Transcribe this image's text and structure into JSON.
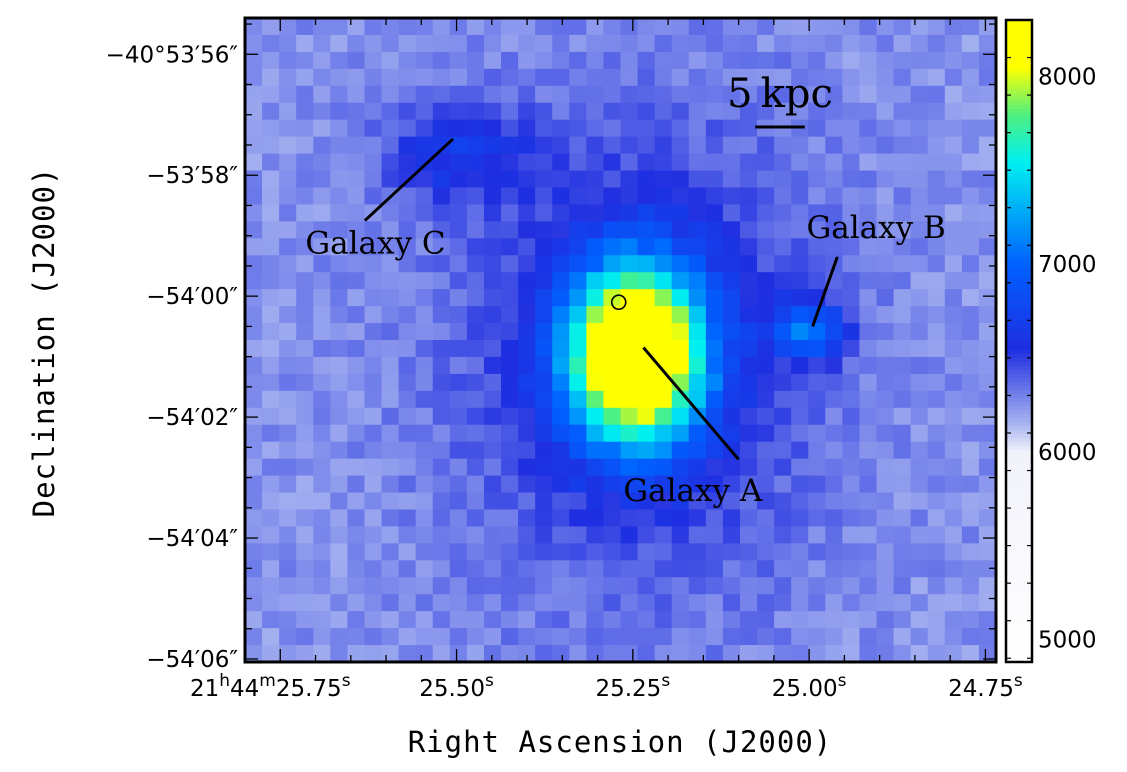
{
  "chart_data": {
    "type": "heatmap",
    "xlabel": "Right Ascension (J2000)",
    "ylabel": "Declination (J2000)",
    "x_tick_labels": [
      {
        "h": "21",
        "m": "44",
        "s": "25.75",
        "ra_sec": 25.75
      },
      {
        "s": "25.50",
        "ra_sec": 25.5
      },
      {
        "s": "25.25",
        "ra_sec": 25.25
      },
      {
        "s": "25.00",
        "ra_sec": 25.0
      },
      {
        "s": "24.75",
        "ra_sec": 24.75
      }
    ],
    "y_tick_labels": [
      {
        "label": "−40°53′56″",
        "dec_arcsec_offset": 4
      },
      {
        "label": "−53′58″",
        "dec_arcsec_offset": 2
      },
      {
        "label": "−54′00″",
        "dec_arcsec_offset": 0
      },
      {
        "label": "−54′02″",
        "dec_arcsec_offset": -2
      },
      {
        "label": "−54′04″",
        "dec_arcsec_offset": -4
      },
      {
        "label": "−54′06″",
        "dec_arcsec_offset": -6
      }
    ],
    "xlim": [
      25.8,
      24.735
    ],
    "ylim": [
      -6.05,
      4.6
    ],
    "colorbar": {
      "ticks": [
        5000,
        6000,
        7000,
        8000
      ],
      "range": [
        4880,
        8300
      ],
      "stops": [
        {
          "v": 4880,
          "color": "#ffffff"
        },
        {
          "v": 6000,
          "color": "#f2f2fb"
        },
        {
          "v": 6150,
          "color": "#a9b5f0"
        },
        {
          "v": 6550,
          "color": "#1f2ee0"
        },
        {
          "v": 7000,
          "color": "#0060ff"
        },
        {
          "v": 7550,
          "color": "#00f0f0"
        },
        {
          "v": 7800,
          "color": "#50f080"
        },
        {
          "v": 8050,
          "color": "#ffff00"
        },
        {
          "v": 8300,
          "color": "#ffff00"
        }
      ]
    },
    "image": {
      "grid_cols": 44,
      "grid_rows": 38,
      "background_level": 6250,
      "sources": [
        {
          "name": "Galaxy A",
          "ra_sec": 25.245,
          "dec_arcsec_offset": -0.95,
          "peak": 8650
        },
        {
          "name": "Galaxy B",
          "ra_sec": 25.0,
          "dec_arcsec_offset": -0.55,
          "peak": 6950
        },
        {
          "name": "Galaxy C",
          "ra_sec": 25.5,
          "dec_arcsec_offset": 2.35,
          "peak": 6600
        }
      ]
    },
    "annotations": [
      {
        "text": "Galaxy A",
        "text_ra_sec": 25.165,
        "text_dec_arcsec_offset": -3.25,
        "line_from": [
          25.235,
          -0.85
        ],
        "line_to": [
          25.1,
          -2.7
        ]
      },
      {
        "text": "Galaxy B",
        "text_ra_sec": 24.905,
        "text_dec_arcsec_offset": 1.1,
        "line_from": [
          24.96,
          0.65
        ],
        "line_to": [
          24.995,
          -0.5
        ]
      },
      {
        "text": "Galaxy C",
        "text_ra_sec": 25.615,
        "text_dec_arcsec_offset": 0.85,
        "line_from": [
          25.63,
          1.25
        ],
        "line_to": [
          25.505,
          2.6
        ]
      }
    ],
    "marker": {
      "type": "circle",
      "ra_sec": 25.27,
      "dec_arcsec_offset": -0.1
    },
    "scale_bar": {
      "label": "5 kpc",
      "length_arcsec": 0.82
    }
  }
}
